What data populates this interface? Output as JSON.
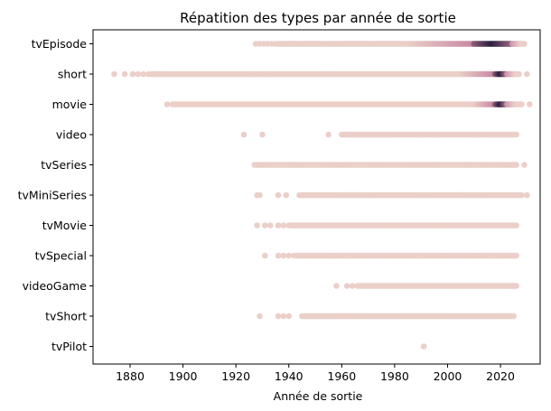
{
  "chart_data": {
    "type": "scatter",
    "title": "Répatition des types par année de sortie",
    "xlabel": "Année de sortie",
    "ylabel": "",
    "xlim": [
      1866,
      2035
    ],
    "xticks": [
      1880,
      1900,
      1920,
      1940,
      1960,
      1980,
      2000,
      2020
    ],
    "categories": [
      "tvEpisode",
      "short",
      "movie",
      "video",
      "tvSeries",
      "tvMiniSeries",
      "tvMovie",
      "tvSpecial",
      "videoGame",
      "tvShort",
      "tvPilot"
    ],
    "grid": false,
    "legend": "none",
    "colors": {
      "base": "#ebcfc9",
      "mid": "#c98aa3",
      "dense": "#2d1e3e"
    },
    "series": [
      {
        "category": "tvEpisode",
        "isolated": [
          1927.5,
          1929,
          1930.5,
          1932,
          1933.5,
          1935
        ],
        "range": [
          1936,
          2029
        ],
        "dense_start": 1985,
        "darkest": [
          2010,
          2024
        ]
      },
      {
        "category": "short",
        "isolated": [
          1874,
          1878,
          1881,
          1883,
          1885,
          1887
        ],
        "range": [
          1888,
          2027
        ],
        "extra": [
          2030
        ],
        "dense_start": 2005,
        "darkest": [
          2018,
          2022
        ]
      },
      {
        "category": "movie",
        "isolated": [
          1894
        ],
        "range": [
          1896,
          2028
        ],
        "extra": [
          2031
        ],
        "dense_start": 2010,
        "darkest": [
          2018,
          2022
        ]
      },
      {
        "category": "video",
        "isolated": [
          1923,
          1930,
          1955
        ],
        "range": [
          1960,
          2026
        ]
      },
      {
        "category": "tvSeries",
        "isolated": [],
        "range": [
          1927,
          2026
        ],
        "extra": [
          2029
        ]
      },
      {
        "category": "tvMiniSeries",
        "isolated": [
          1928,
          1929,
          1936,
          1939
        ],
        "range": [
          1944,
          2028
        ],
        "extra": [
          2030
        ]
      },
      {
        "category": "tvMovie",
        "isolated": [
          1928,
          1931,
          1933,
          1936,
          1938,
          1940
        ],
        "range": [
          1941,
          2026
        ]
      },
      {
        "category": "tvSpecial",
        "isolated": [
          1931,
          1936,
          1938,
          1940,
          1942
        ],
        "range": [
          1943,
          2026
        ]
      },
      {
        "category": "videoGame",
        "isolated": [
          1958,
          1962,
          1964
        ],
        "range": [
          1966,
          2026
        ]
      },
      {
        "category": "tvShort",
        "isolated": [
          1929,
          1936,
          1938,
          1940
        ],
        "range": [
          1945,
          2025
        ]
      },
      {
        "category": "tvPilot",
        "isolated": [
          1991
        ],
        "range": null
      }
    ]
  }
}
